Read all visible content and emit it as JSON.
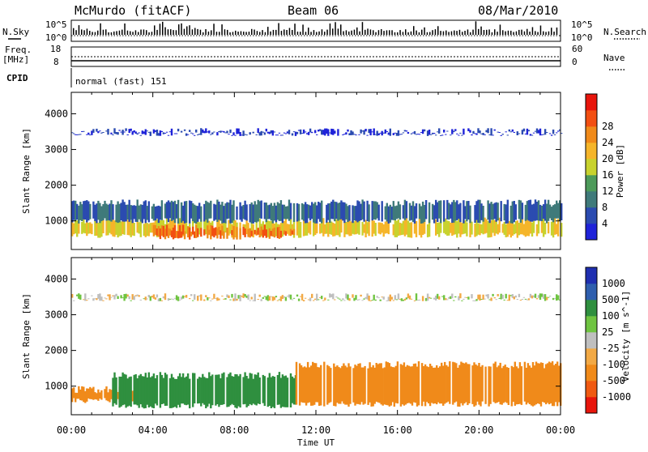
{
  "header": {
    "station": "McMurdo (fitACF)",
    "beam": "Beam 06",
    "date": "08/Mar/2010"
  },
  "top_panels": {
    "nsky_label": "N.Sky",
    "nsky_ticks": [
      "10^5",
      "10^0"
    ],
    "nsearch_label": "N.Search",
    "freq_label_1": "Freq.",
    "freq_label_2": "[MHz]",
    "freq_ticks": [
      "18",
      "8"
    ],
    "nave_label": "Nave",
    "nave_ticks": [
      "60",
      "0"
    ],
    "cpid_label": "CPID",
    "cpid_value": "normal (fast) 151"
  },
  "colors": {
    "power_scale": [
      "#1f23d9",
      "#2b4bb0",
      "#3f7a7a",
      "#4d9a5a",
      "#c8d22e",
      "#f5b52a",
      "#f08a1a",
      "#f24f12",
      "#e8150c"
    ],
    "velocity_scale": [
      "#e8150c",
      "#f05a12",
      "#f08a1a",
      "#f2a945",
      "#bfbfbf",
      "#6fc441",
      "#2f8f3f",
      "#2f5fae",
      "#1f2fb0"
    ]
  },
  "chart_data": [
    {
      "type": "heatmap",
      "title": "Power",
      "xlabel": "Time UT",
      "ylabel": "Slant Range [km]",
      "x_ticks": [
        "00:00",
        "04:00",
        "08:00",
        "12:00",
        "16:00",
        "20:00",
        "00:00"
      ],
      "y_ticks": [
        1000,
        2000,
        3000,
        4000
      ],
      "ylim": [
        200,
        4600
      ],
      "xlim_hours": [
        0,
        24
      ],
      "colorbar_label": "Power [dB]",
      "colorbar_ticks": [
        4,
        8,
        12,
        16,
        20,
        24,
        28
      ],
      "bands": [
        {
          "t_start": 0,
          "t_end": 24,
          "r_low": 600,
          "r_high": 1000,
          "value_db": 20
        },
        {
          "t_start": 4,
          "t_end": 11,
          "r_low": 550,
          "r_high": 800,
          "value_db": 28
        },
        {
          "t_start": 0,
          "t_end": 24,
          "r_low": 1000,
          "r_high": 1500,
          "value_db": 8
        },
        {
          "t_start": 0,
          "t_end": 24,
          "r_low": 3450,
          "r_high": 3500,
          "value_db": 4
        }
      ]
    },
    {
      "type": "heatmap",
      "title": "Velocity",
      "xlabel": "Time UT",
      "ylabel": "Slant Range [km]",
      "x_ticks": [
        "00:00",
        "04:00",
        "08:00",
        "12:00",
        "16:00",
        "20:00",
        "00:00"
      ],
      "y_ticks": [
        1000,
        2000,
        3000,
        4000
      ],
      "ylim": [
        200,
        4600
      ],
      "xlim_hours": [
        0,
        24
      ],
      "colorbar_label": "Velocity [m s^-1]",
      "colorbar_ticks": [
        1000,
        500,
        100,
        25,
        -25,
        -100,
        -500,
        -1000
      ],
      "bands": [
        {
          "t_start": 0,
          "t_end": 3.5,
          "r_low": 600,
          "r_high": 900,
          "value_ms": -200
        },
        {
          "t_start": 2,
          "t_end": 11,
          "r_low": 450,
          "r_high": 1300,
          "value_ms": 200
        },
        {
          "t_start": 11,
          "t_end": 24,
          "r_low": 500,
          "r_high": 1600,
          "value_ms": -200
        },
        {
          "t_start": 0,
          "t_end": 24,
          "r_low": 3450,
          "r_high": 3500,
          "value_ms": 0
        }
      ]
    }
  ]
}
